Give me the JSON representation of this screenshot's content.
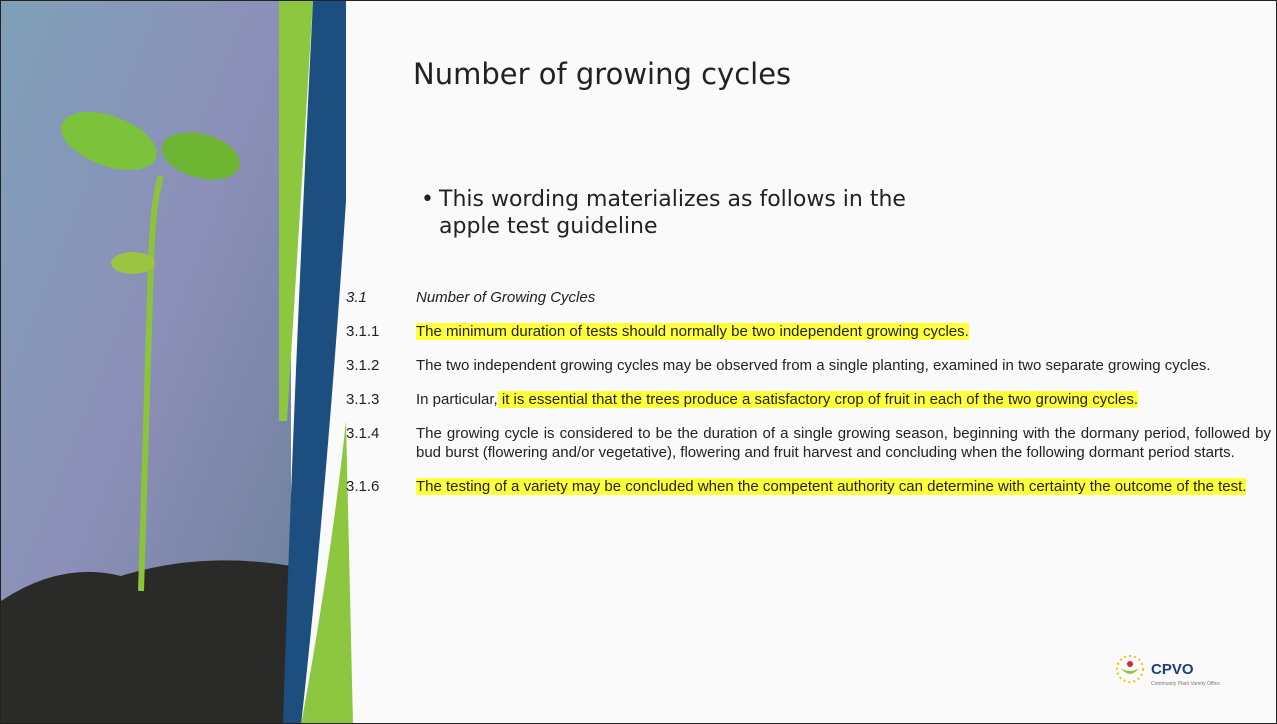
{
  "title": "Number of growing cycles",
  "bullet": "This wording materializes as follows in the apple test guideline",
  "section": {
    "number": "3.1",
    "title": "Number of Growing Cycles"
  },
  "paragraphs": [
    {
      "number": "3.1.1",
      "segments": [
        {
          "text": "The minimum duration of tests should normally be two independent growing cycles.",
          "highlight": true
        }
      ]
    },
    {
      "number": "3.1.2",
      "segments": [
        {
          "text": "The two independent growing cycles may be observed from a single planting, examined in two separate growing cycles.",
          "highlight": false
        }
      ]
    },
    {
      "number": "3.1.3",
      "segments": [
        {
          "text": "In particular,",
          "highlight": false
        },
        {
          "text": " it is essential that the trees produce a satisfactory crop of fruit in each of the two growing cycles.",
          "highlight": true
        }
      ]
    },
    {
      "number": "3.1.4",
      "segments": [
        {
          "text": "The growing cycle is considered to be the duration of a single growing season, beginning with the dormany period, followed by bud burst (flowering and/or vegetative), flowering and fruit harvest and concluding when the following dormant period starts.",
          "highlight": false
        }
      ]
    },
    {
      "number": "3.1.6",
      "segments": [
        {
          "text": "The testing of a variety may be concluded when the competent authority can determine with certainty the outcome of the test.",
          "highlight": true
        }
      ]
    }
  ],
  "logo": {
    "name": "CPVO",
    "tagline": "Community Plant Variety Office"
  }
}
